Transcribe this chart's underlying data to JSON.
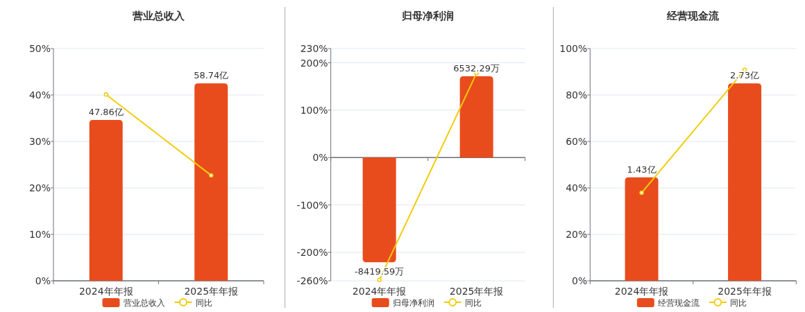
{
  "chart_data": [
    {
      "type": "bar",
      "title": "营业总收入",
      "categories": [
        "2024年年报",
        "2025年年报"
      ],
      "grid": "y",
      "legend": "bottom",
      "ylim": [
        0,
        50
      ],
      "yticks": [
        {
          "value": 0,
          "label": "0%"
        },
        {
          "value": 10,
          "label": "10%"
        },
        {
          "value": 20,
          "label": "20%"
        },
        {
          "value": 30,
          "label": "30%"
        },
        {
          "value": 40,
          "label": "40%"
        },
        {
          "value": 50,
          "label": "50%"
        }
      ],
      "series": [
        {
          "name": "营业总收入",
          "type": "bar",
          "axis": "y2",
          "color": "#e84c1d",
          "values": [
            47.86,
            58.74
          ],
          "value_labels": [
            "47.86亿",
            "58.74亿"
          ]
        },
        {
          "name": "同比",
          "type": "line",
          "color": "#f2cc0c",
          "marker": "circle",
          "values": [
            40.1,
            22.7
          ]
        }
      ]
    },
    {
      "type": "bar",
      "title": "归母净利润",
      "categories": [
        "2024年年报",
        "2025年年报"
      ],
      "grid": "y",
      "legend": "bottom",
      "ylim": [
        -260,
        230
      ],
      "yticks": [
        {
          "value": -260,
          "label": "-260%"
        },
        {
          "value": -200,
          "label": "-200%"
        },
        {
          "value": -100,
          "label": "-100%"
        },
        {
          "value": 0,
          "label": "0%"
        },
        {
          "value": 100,
          "label": "100%"
        },
        {
          "value": 200,
          "label": "200%"
        },
        {
          "value": 230,
          "label": "230%"
        }
      ],
      "series": [
        {
          "name": "归母净利润",
          "type": "bar",
          "axis": "y2",
          "color": "#e84c1d",
          "values": [
            -8419.59,
            6532.29
          ],
          "value_labels": [
            "-8419.59万",
            "6532.29万"
          ]
        },
        {
          "name": "同比",
          "type": "line",
          "color": "#f2cc0c",
          "marker": "circle",
          "values": [
            -258,
            178
          ]
        }
      ]
    },
    {
      "type": "bar",
      "title": "经营现金流",
      "categories": [
        "2024年年报",
        "2025年年报"
      ],
      "grid": "y",
      "legend": "bottom",
      "ylim": [
        0,
        100
      ],
      "yticks": [
        {
          "value": 0,
          "label": "0%"
        },
        {
          "value": 20,
          "label": "20%"
        },
        {
          "value": 40,
          "label": "40%"
        },
        {
          "value": 60,
          "label": "60%"
        },
        {
          "value": 80,
          "label": "80%"
        },
        {
          "value": 100,
          "label": "100%"
        }
      ],
      "series": [
        {
          "name": "经营现金流",
          "type": "bar",
          "axis": "y2",
          "color": "#e84c1d",
          "values": [
            1.43,
            2.73
          ],
          "value_labels": [
            "1.43亿",
            "2.73亿"
          ]
        },
        {
          "name": "同比",
          "type": "line",
          "color": "#f2cc0c",
          "marker": "circle",
          "values": [
            37.9,
            90.8
          ]
        }
      ]
    }
  ]
}
